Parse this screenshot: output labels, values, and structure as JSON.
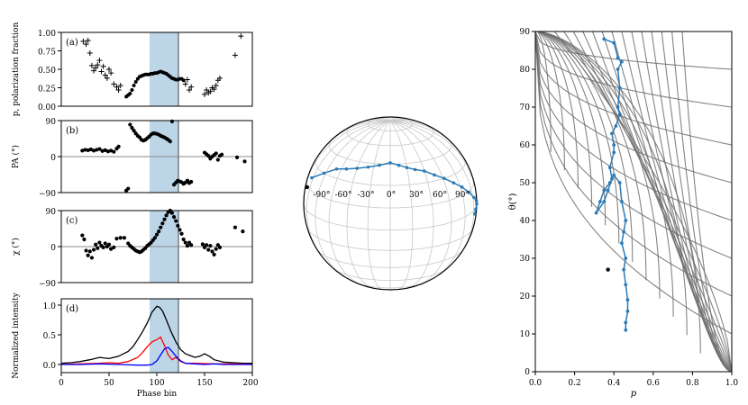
{
  "colors": {
    "shade": "#bcd6e8",
    "series_blue": "#2c7bb6",
    "intensity_total": "#000000",
    "intensity_linear": "#ff0000",
    "intensity_circular": "#0000ff",
    "grid": "#c8c8c8",
    "contours": "#6e6e6e"
  },
  "chart_data": [
    {
      "type": "scatter",
      "panel_label": "(a)",
      "ylabel": "p, polarization fraction",
      "ylim": [
        0,
        1
      ],
      "yticks": [
        "0.00",
        "0.25",
        "0.50",
        "0.75",
        "1.00"
      ],
      "xlim": [
        0,
        200
      ],
      "shaded_region": [
        100,
        128
      ],
      "vline": 128,
      "series": [
        {
          "marker": "plus",
          "points": [
            [
              23,
              0.88
            ],
            [
              26,
              0.84
            ],
            [
              28,
              0.89
            ],
            [
              30,
              0.72
            ],
            [
              32,
              0.55
            ],
            [
              34,
              0.48
            ],
            [
              36,
              0.52
            ],
            [
              38,
              0.56
            ],
            [
              40,
              0.62
            ],
            [
              42,
              0.47
            ],
            [
              44,
              0.54
            ],
            [
              46,
              0.42
            ],
            [
              48,
              0.38
            ],
            [
              50,
              0.5
            ],
            [
              52,
              0.45
            ],
            [
              55,
              0.3
            ],
            [
              58,
              0.26
            ],
            [
              60,
              0.22
            ],
            [
              62,
              0.28
            ]
          ]
        },
        {
          "marker": "dot",
          "points": [
            [
              68,
              0.13
            ],
            [
              70,
              0.15
            ],
            [
              72,
              0.17
            ],
            [
              74,
              0.22
            ],
            [
              76,
              0.28
            ],
            [
              78,
              0.33
            ],
            [
              80,
              0.37
            ],
            [
              82,
              0.4
            ],
            [
              84,
              0.41
            ],
            [
              86,
              0.42
            ],
            [
              88,
              0.43
            ],
            [
              90,
              0.43
            ],
            [
              92,
              0.43
            ],
            [
              94,
              0.44
            ],
            [
              96,
              0.44
            ],
            [
              98,
              0.45
            ],
            [
              100,
              0.45
            ],
            [
              102,
              0.46
            ],
            [
              104,
              0.47
            ],
            [
              106,
              0.46
            ],
            [
              108,
              0.45
            ],
            [
              110,
              0.44
            ],
            [
              112,
              0.42
            ],
            [
              114,
              0.4
            ],
            [
              116,
              0.38
            ],
            [
              118,
              0.37
            ],
            [
              120,
              0.36
            ],
            [
              122,
              0.36
            ],
            [
              124,
              0.37
            ],
            [
              126,
              0.37
            ],
            [
              128,
              0.35
            ]
          ]
        },
        {
          "marker": "plus",
          "points": [
            [
              130,
              0.3
            ],
            [
              132,
              0.36
            ],
            [
              134,
              0.22
            ],
            [
              136,
              0.26
            ],
            [
              150,
              0.16
            ],
            [
              152,
              0.22
            ],
            [
              154,
              0.18
            ],
            [
              156,
              0.2
            ],
            [
              158,
              0.25
            ],
            [
              160,
              0.23
            ],
            [
              162,
              0.28
            ],
            [
              164,
              0.35
            ],
            [
              166,
              0.38
            ],
            [
              182,
              0.69
            ],
            [
              188,
              0.95
            ]
          ]
        }
      ]
    },
    {
      "type": "scatter",
      "panel_label": "(b)",
      "ylabel": "PA (°)",
      "ylim": [
        -90,
        90
      ],
      "yticks": [
        "−90",
        "0",
        "90"
      ],
      "xlim": [
        0,
        200
      ],
      "hline": 0,
      "points": [
        [
          22,
          15
        ],
        [
          25,
          17
        ],
        [
          28,
          16
        ],
        [
          31,
          18
        ],
        [
          34,
          15
        ],
        [
          37,
          17
        ],
        [
          40,
          19
        ],
        [
          43,
          14
        ],
        [
          46,
          16
        ],
        [
          49,
          13
        ],
        [
          52,
          15
        ],
        [
          55,
          12
        ],
        [
          58,
          20
        ],
        [
          60,
          25
        ],
        [
          68,
          -85
        ],
        [
          70,
          -80
        ],
        [
          72,
          80
        ],
        [
          74,
          72
        ],
        [
          76,
          65
        ],
        [
          78,
          58
        ],
        [
          80,
          52
        ],
        [
          82,
          48
        ],
        [
          84,
          42
        ],
        [
          86,
          40
        ],
        [
          88,
          42
        ],
        [
          90,
          46
        ],
        [
          92,
          50
        ],
        [
          94,
          55
        ],
        [
          96,
          58
        ],
        [
          98,
          58
        ],
        [
          100,
          57
        ],
        [
          102,
          55
        ],
        [
          104,
          52
        ],
        [
          106,
          50
        ],
        [
          108,
          48
        ],
        [
          110,
          45
        ],
        [
          112,
          42
        ],
        [
          114,
          38
        ],
        [
          116,
          88
        ],
        [
          118,
          -70
        ],
        [
          120,
          -65
        ],
        [
          122,
          -60
        ],
        [
          124,
          -62
        ],
        [
          126,
          -64
        ],
        [
          128,
          -68
        ],
        [
          130,
          -65
        ],
        [
          132,
          -60
        ],
        [
          134,
          -66
        ],
        [
          136,
          -63
        ],
        [
          150,
          10
        ],
        [
          152,
          6
        ],
        [
          154,
          2
        ],
        [
          156,
          -5
        ],
        [
          158,
          0
        ],
        [
          160,
          4
        ],
        [
          162,
          8
        ],
        [
          164,
          -8
        ],
        [
          166,
          2
        ],
        [
          168,
          5
        ],
        [
          184,
          -2
        ],
        [
          192,
          -12
        ]
      ]
    },
    {
      "type": "scatter",
      "panel_label": "(c)",
      "ylabel": "χ (°)",
      "ylim": [
        -90,
        90
      ],
      "yticks": [
        "−90",
        "0",
        "90"
      ],
      "xlim": [
        0,
        200
      ],
      "hline": 0,
      "points": [
        [
          22,
          28
        ],
        [
          24,
          18
        ],
        [
          26,
          -10
        ],
        [
          28,
          -22
        ],
        [
          30,
          -12
        ],
        [
          32,
          -28
        ],
        [
          34,
          -8
        ],
        [
          36,
          5
        ],
        [
          38,
          -4
        ],
        [
          40,
          10
        ],
        [
          42,
          2
        ],
        [
          44,
          -2
        ],
        [
          46,
          8
        ],
        [
          48,
          0
        ],
        [
          50,
          5
        ],
        [
          52,
          -6
        ],
        [
          55,
          -2
        ],
        [
          58,
          20
        ],
        [
          62,
          22
        ],
        [
          66,
          22
        ],
        [
          70,
          8
        ],
        [
          72,
          2
        ],
        [
          74,
          -2
        ],
        [
          76,
          -6
        ],
        [
          78,
          -10
        ],
        [
          80,
          -12
        ],
        [
          82,
          -14
        ],
        [
          84,
          -12
        ],
        [
          86,
          -8
        ],
        [
          88,
          -4
        ],
        [
          90,
          2
        ],
        [
          92,
          6
        ],
        [
          94,
          10
        ],
        [
          96,
          16
        ],
        [
          98,
          22
        ],
        [
          100,
          30
        ],
        [
          102,
          38
        ],
        [
          104,
          48
        ],
        [
          106,
          58
        ],
        [
          108,
          68
        ],
        [
          110,
          78
        ],
        [
          112,
          86
        ],
        [
          114,
          90
        ],
        [
          116,
          84
        ],
        [
          118,
          74
        ],
        [
          120,
          64
        ],
        [
          122,
          52
        ],
        [
          124,
          42
        ],
        [
          126,
          32
        ],
        [
          128,
          18
        ],
        [
          130,
          10
        ],
        [
          132,
          2
        ],
        [
          134,
          10
        ],
        [
          136,
          4
        ],
        [
          148,
          6
        ],
        [
          150,
          -2
        ],
        [
          152,
          4
        ],
        [
          154,
          -8
        ],
        [
          156,
          2
        ],
        [
          158,
          -12
        ],
        [
          160,
          -20
        ],
        [
          162,
          -6
        ],
        [
          164,
          4
        ],
        [
          166,
          -2
        ],
        [
          182,
          48
        ],
        [
          190,
          38
        ]
      ]
    },
    {
      "type": "line",
      "panel_label": "(d)",
      "ylabel": "Normalized intensity",
      "xlabel": "Phase bin",
      "ylim": [
        -0.1,
        1.1
      ],
      "yticks": [
        "0.0",
        "0.5",
        "1.0"
      ],
      "xlim": [
        0,
        200
      ],
      "xticks": [
        "0",
        "50",
        "100",
        "150",
        "200"
      ],
      "series": [
        {
          "color": "#000000",
          "x": [
            0,
            10,
            20,
            30,
            40,
            50,
            60,
            70,
            75,
            80,
            85,
            90,
            95,
            100,
            103,
            106,
            110,
            115,
            120,
            125,
            130,
            135,
            140,
            145,
            150,
            155,
            160,
            170,
            180,
            190,
            200
          ],
          "values": [
            0.02,
            0.03,
            0.05,
            0.08,
            0.12,
            0.1,
            0.14,
            0.22,
            0.3,
            0.42,
            0.55,
            0.7,
            0.88,
            0.98,
            0.96,
            0.9,
            0.75,
            0.55,
            0.38,
            0.25,
            0.18,
            0.15,
            0.12,
            0.14,
            0.18,
            0.14,
            0.08,
            0.04,
            0.03,
            0.02,
            0.02
          ]
        },
        {
          "color": "#ff0000",
          "x": [
            0,
            20,
            40,
            50,
            60,
            70,
            80,
            85,
            90,
            95,
            100,
            104,
            108,
            112,
            116,
            120,
            125,
            130,
            140,
            160,
            180,
            200
          ],
          "values": [
            0.0,
            0.01,
            0.02,
            0.03,
            0.02,
            0.05,
            0.12,
            0.2,
            0.3,
            0.38,
            0.42,
            0.46,
            0.32,
            0.16,
            0.08,
            0.12,
            0.05,
            0.02,
            0.02,
            0.01,
            0.01,
            0.0
          ]
        },
        {
          "color": "#0000ff",
          "x": [
            0,
            20,
            40,
            60,
            80,
            90,
            95,
            100,
            104,
            108,
            112,
            116,
            120,
            125,
            130,
            140,
            150,
            160,
            170,
            180,
            190,
            200
          ],
          "values": [
            0.0,
            0.0,
            0.01,
            0.0,
            -0.01,
            -0.01,
            0.0,
            0.06,
            0.16,
            0.26,
            0.29,
            0.22,
            0.14,
            0.06,
            0.02,
            0.01,
            0.0,
            0.01,
            0.0,
            0.0,
            0.0,
            0.0
          ]
        }
      ],
      "shaded_region": [
        100,
        128
      ],
      "vline": 128
    },
    {
      "type": "scatter",
      "panel_label": "",
      "projection": "orthographic sphere (Poincaré sphere)",
      "lon_tick_labels": [
        "-90°",
        "-60°",
        "-30°",
        "0°",
        "30°",
        "60°",
        "90°"
      ],
      "points_lon_lat": [
        [
          -78,
          22
        ],
        [
          -62,
          30
        ],
        [
          -50,
          36
        ],
        [
          -40,
          38
        ],
        [
          -30,
          40
        ],
        [
          -20,
          42
        ],
        [
          -10,
          44
        ],
        [
          0,
          46
        ],
        [
          8,
          44
        ],
        [
          15,
          42
        ],
        [
          22,
          40
        ],
        [
          30,
          38
        ],
        [
          38,
          34
        ],
        [
          46,
          30
        ],
        [
          54,
          25
        ],
        [
          62,
          20
        ],
        [
          70,
          14
        ],
        [
          78,
          8
        ],
        [
          86,
          3
        ],
        [
          92,
          -1
        ],
        [
          96,
          -6
        ],
        [
          98,
          -10
        ]
      ],
      "start_point_lon_lat": [
        -82,
        14
      ]
    },
    {
      "type": "line",
      "panel_label": "",
      "xlabel": "p",
      "ylabel": "θ(°)",
      "xlim": [
        0,
        1
      ],
      "ylim": [
        0,
        90
      ],
      "xticks": [
        "0.0",
        "0.2",
        "0.4",
        "0.6",
        "0.8",
        "1.0"
      ],
      "yticks": [
        "0",
        "10",
        "20",
        "30",
        "40",
        "50",
        "60",
        "70",
        "80",
        "90"
      ],
      "path": [
        [
          0.35,
          88
        ],
        [
          0.4,
          87
        ],
        [
          0.42,
          83
        ],
        [
          0.44,
          82
        ],
        [
          0.42,
          80
        ],
        [
          0.43,
          75
        ],
        [
          0.42,
          70
        ],
        [
          0.43,
          68
        ],
        [
          0.41,
          65
        ],
        [
          0.39,
          63
        ],
        [
          0.4,
          60
        ],
        [
          0.4,
          58
        ],
        [
          0.38,
          54
        ],
        [
          0.39,
          51
        ],
        [
          0.37,
          48
        ],
        [
          0.35,
          45
        ],
        [
          0.31,
          42
        ],
        [
          0.33,
          45
        ],
        [
          0.35,
          48
        ],
        [
          0.38,
          50
        ],
        [
          0.4,
          52
        ],
        [
          0.43,
          50
        ],
        [
          0.44,
          45
        ],
        [
          0.46,
          40
        ],
        [
          0.45,
          37
        ],
        [
          0.44,
          34
        ],
        [
          0.46,
          30
        ],
        [
          0.45,
          27
        ],
        [
          0.46,
          23
        ],
        [
          0.47,
          19
        ],
        [
          0.47,
          16
        ],
        [
          0.46,
          13
        ],
        [
          0.46,
          11
        ]
      ],
      "start_point": [
        0.37,
        27
      ]
    }
  ]
}
